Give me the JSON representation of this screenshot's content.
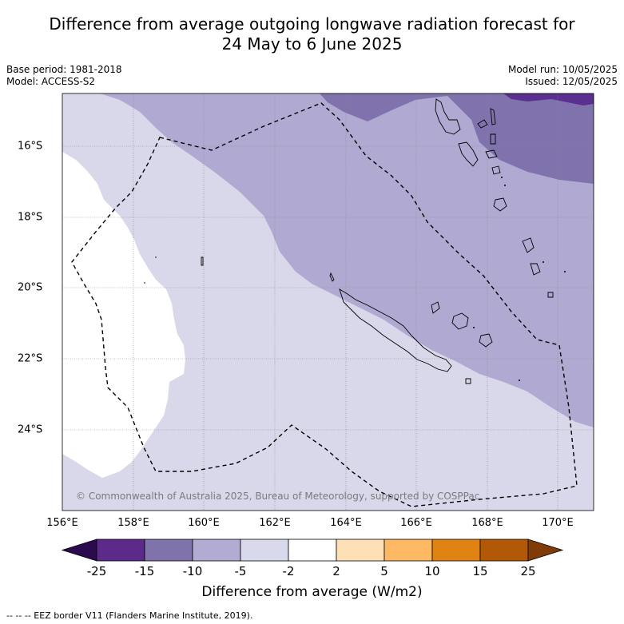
{
  "title_line1": "Difference from average outgoing longwave radiation forecast for",
  "title_line2": "24 May to 6 June 2025",
  "meta": {
    "base_period": "Base period: 1981-2018",
    "model": "Model: ACCESS-S2",
    "model_run": "Model run: 10/05/2025",
    "issued": "Issued: 12/05/2025"
  },
  "map": {
    "lon_labels": [
      "156°E",
      "158°E",
      "160°E",
      "162°E",
      "164°E",
      "166°E",
      "168°E",
      "170°E"
    ],
    "lat_labels": [
      "16°S",
      "18°S",
      "20°S",
      "22°S",
      "24°S"
    ],
    "copyright": "© Commonwealth of Australia 2025, Bureau of Meteorology, supported by COSPPac",
    "colors": {
      "band_-2_-5": "#d8d8ea",
      "band_-5_-10": "#b0aad2",
      "band_-10_-15": "#7f72ad",
      "band_-15_-25": "#5a2f8f",
      "neutral": "#ffffff",
      "coast": "#000000",
      "eez": "#000000"
    }
  },
  "colorbar": {
    "ticks": [
      "-25",
      "-15",
      "-10",
      "-5",
      "-2",
      "2",
      "5",
      "10",
      "15",
      "25"
    ],
    "colors": [
      "#2c0a4e",
      "#5b2a8a",
      "#8073ac",
      "#b2abd2",
      "#d8daeb",
      "#ffffff",
      "#fee0b6",
      "#fdb863",
      "#e08214",
      "#b35806",
      "#7f3b08"
    ],
    "label": "Difference from average (W/m2)"
  },
  "footnote": "--  --  -- EEZ border V11 (Flanders Marine Institute, 2019)."
}
